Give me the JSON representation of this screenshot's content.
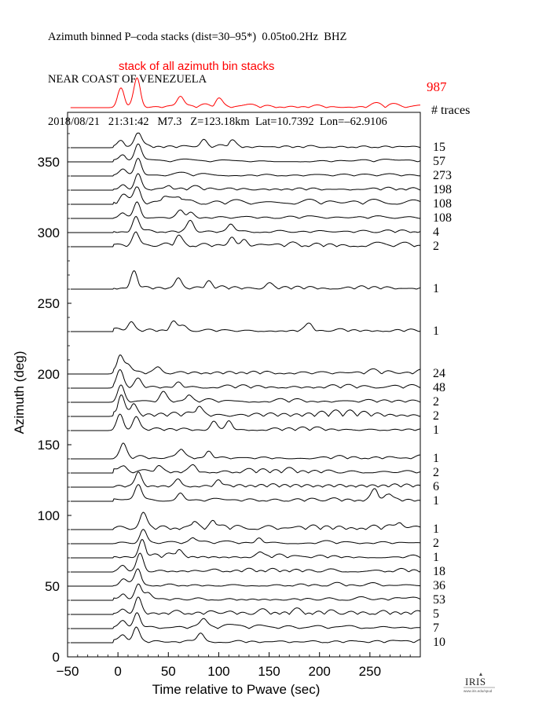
{
  "header": {
    "line1": "Azimuth binned P–coda stacks (dist=30–95*)  0.05to0.2Hz  BHZ",
    "line2": "NEAR COAST OF VENEZUELA",
    "line3": "2018/08/21   21:31:42   M7.3   Z=123.18km  Lat=10.7392  Lon=–62.9106"
  },
  "chart_data": {
    "type": "line",
    "xlabel": "Time relative to Pwave (sec)",
    "ylabel": "Azimuth (deg)",
    "xlim": [
      -50,
      300
    ],
    "ylim": [
      0,
      385
    ],
    "xticks": [
      -50,
      0,
      50,
      100,
      150,
      200,
      250
    ],
    "yticks": [
      0,
      50,
      100,
      150,
      200,
      250,
      300,
      350
    ],
    "xtick_labels": [
      "−50",
      "0",
      "50",
      "100",
      "150",
      "200",
      "250"
    ],
    "ytick_labels": [
      "0",
      "50",
      "100",
      "150",
      "200",
      "250",
      "300",
      "350"
    ],
    "grid": false,
    "summary_stack": {
      "label": "stack of all azimuth bin stacks",
      "count": "987",
      "color": "#ff0000",
      "peaks": [
        [
          3,
          0.55
        ],
        [
          19,
          0.85
        ],
        [
          62,
          0.3
        ],
        [
          100,
          0.2
        ]
      ]
    },
    "count_header": "# traces",
    "traces": [
      {
        "azimuth": 360,
        "count": "15",
        "peaks": [
          [
            3,
            0.35
          ],
          [
            20,
            0.85
          ],
          [
            85,
            0.45
          ],
          [
            113,
            0.3
          ]
        ]
      },
      {
        "azimuth": 350,
        "count": "57",
        "peaks": [
          [
            5,
            0.35
          ],
          [
            20,
            0.9
          ]
        ]
      },
      {
        "azimuth": 340,
        "count": "273",
        "peaks": [
          [
            5,
            0.3
          ],
          [
            20,
            1.0
          ]
        ]
      },
      {
        "azimuth": 330,
        "count": "198",
        "peaks": [
          [
            5,
            0.3
          ],
          [
            20,
            0.95
          ],
          [
            50,
            0.25
          ]
        ]
      },
      {
        "azimuth": 320,
        "count": "108",
        "peaks": [
          [
            5,
            0.3
          ],
          [
            19,
            1.0
          ],
          [
            45,
            0.3
          ],
          [
            62,
            0.3
          ]
        ]
      },
      {
        "azimuth": 310,
        "count": "108",
        "peaks": [
          [
            5,
            0.3
          ],
          [
            19,
            0.9
          ],
          [
            62,
            0.4
          ],
          [
            72,
            0.3
          ]
        ]
      },
      {
        "azimuth": 300,
        "count": "4",
        "peaks": [
          [
            18,
            0.9
          ],
          [
            72,
            0.6
          ],
          [
            112,
            0.45
          ]
        ]
      },
      {
        "azimuth": 290,
        "count": "2",
        "peaks": [
          [
            18,
            0.8
          ],
          [
            60,
            0.4
          ],
          [
            113,
            0.55
          ],
          [
            125,
            0.4
          ]
        ]
      },
      {
        "azimuth": 260,
        "count": "1",
        "peaks": [
          [
            16,
            0.95
          ],
          [
            60,
            0.6
          ],
          [
            90,
            0.35
          ],
          [
            150,
            0.25
          ]
        ]
      },
      {
        "azimuth": 230,
        "count": "1",
        "peaks": [
          [
            13,
            0.55
          ],
          [
            55,
            0.45
          ],
          [
            65,
            0.35
          ],
          [
            190,
            0.3
          ]
        ]
      },
      {
        "azimuth": 200,
        "count": "24",
        "peaks": [
          [
            2,
            1.0
          ],
          [
            10,
            0.45
          ],
          [
            40,
            0.3
          ]
        ]
      },
      {
        "azimuth": 190,
        "count": "48",
        "peaks": [
          [
            2,
            0.9
          ],
          [
            20,
            0.45
          ],
          [
            60,
            0.3
          ]
        ]
      },
      {
        "azimuth": 180,
        "count": "2",
        "peaks": [
          [
            3,
            0.9
          ],
          [
            45,
            0.5
          ],
          [
            70,
            0.35
          ]
        ]
      },
      {
        "azimuth": 170,
        "count": "2",
        "peaks": [
          [
            3,
            1.0
          ],
          [
            15,
            0.6
          ],
          [
            80,
            0.45
          ]
        ]
      },
      {
        "azimuth": 160,
        "count": "1",
        "peaks": [
          [
            2,
            0.95
          ],
          [
            18,
            0.75
          ],
          [
            95,
            0.5
          ],
          [
            110,
            0.55
          ]
        ]
      },
      {
        "azimuth": 140,
        "count": "1",
        "peaks": [
          [
            5,
            0.85
          ],
          [
            62,
            0.5
          ],
          [
            90,
            0.4
          ]
        ]
      },
      {
        "azimuth": 130,
        "count": "2",
        "peaks": [
          [
            5,
            0.4
          ],
          [
            40,
            0.3
          ],
          [
            75,
            0.3
          ]
        ]
      },
      {
        "azimuth": 120,
        "count": "6",
        "peaks": [
          [
            20,
            0.8
          ],
          [
            60,
            0.4
          ],
          [
            100,
            0.35
          ]
        ]
      },
      {
        "azimuth": 110,
        "count": "1",
        "peaks": [
          [
            20,
            0.95
          ],
          [
            62,
            0.45
          ],
          [
            255,
            0.6
          ],
          [
            268,
            0.4
          ]
        ]
      },
      {
        "azimuth": 90,
        "count": "1",
        "peaks": [
          [
            25,
            0.85
          ],
          [
            75,
            0.35
          ],
          [
            95,
            0.4
          ],
          [
            280,
            0.35
          ]
        ]
      },
      {
        "azimuth": 80,
        "count": "2",
        "peaks": [
          [
            25,
            0.75
          ],
          [
            75,
            0.3
          ],
          [
            140,
            0.3
          ]
        ]
      },
      {
        "azimuth": 70,
        "count": "1",
        "peaks": [
          [
            24,
            1.0
          ],
          [
            60,
            0.35
          ],
          [
            140,
            0.3
          ]
        ]
      },
      {
        "azimuth": 60,
        "count": "18",
        "peaks": [
          [
            5,
            0.35
          ],
          [
            22,
            0.95
          ]
        ]
      },
      {
        "azimuth": 50,
        "count": "36",
        "peaks": [
          [
            5,
            0.35
          ],
          [
            20,
            0.9
          ]
        ]
      },
      {
        "azimuth": 40,
        "count": "53",
        "peaks": [
          [
            5,
            0.35
          ],
          [
            20,
            0.9
          ],
          [
            30,
            0.3
          ]
        ]
      },
      {
        "azimuth": 30,
        "count": "5",
        "peaks": [
          [
            5,
            0.3
          ],
          [
            20,
            0.9
          ]
        ]
      },
      {
        "azimuth": 20,
        "count": "7",
        "peaks": [
          [
            5,
            0.35
          ],
          [
            19,
            0.9
          ],
          [
            85,
            0.4
          ]
        ]
      },
      {
        "azimuth": 10,
        "count": "10",
        "peaks": [
          [
            5,
            0.35
          ],
          [
            18,
            0.85
          ],
          [
            82,
            0.5
          ]
        ]
      }
    ]
  },
  "logo": {
    "name": "iris-logo-icon",
    "text": "IRIS",
    "sub": "www.iris.edu/spud"
  }
}
